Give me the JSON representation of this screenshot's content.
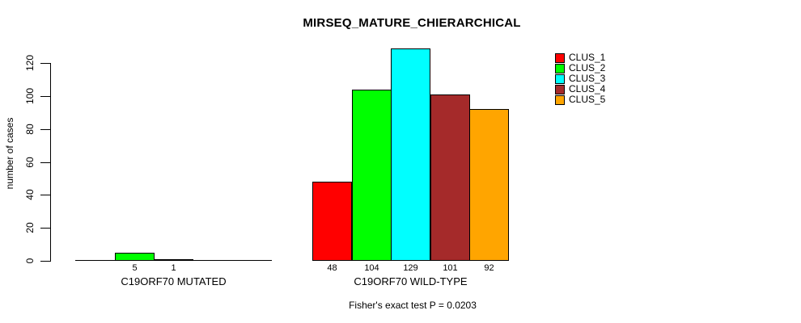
{
  "title": "MIRSEQ_MATURE_CHIERARCHICAL",
  "subtitle": "Fisher's exact test P = 0.0203",
  "chart_data": {
    "type": "bar",
    "title": "MIRSEQ_MATURE_CHIERARCHICAL",
    "xlabel": "",
    "ylabel": "number of cases",
    "ylim": [
      0,
      129
    ],
    "yticks": [
      0,
      20,
      40,
      60,
      80,
      100,
      120
    ],
    "grid": false,
    "legend_position": "top-right",
    "bar_value_labels": true,
    "categories": [
      "C19ORF70 MUTATED",
      "C19ORF70 WILD-TYPE"
    ],
    "series": [
      {
        "name": "CLUS_1",
        "color": "#FF0000",
        "values": [
          0,
          48
        ]
      },
      {
        "name": "CLUS_2",
        "color": "#00FF00",
        "values": [
          5,
          104
        ]
      },
      {
        "name": "CLUS_3",
        "color": "#00FFFF",
        "values": [
          1,
          129
        ]
      },
      {
        "name": "CLUS_4",
        "color": "#A52A2A",
        "values": [
          0,
          101
        ]
      },
      {
        "name": "CLUS_5",
        "color": "#FFA500",
        "values": [
          0,
          92
        ]
      }
    ]
  }
}
